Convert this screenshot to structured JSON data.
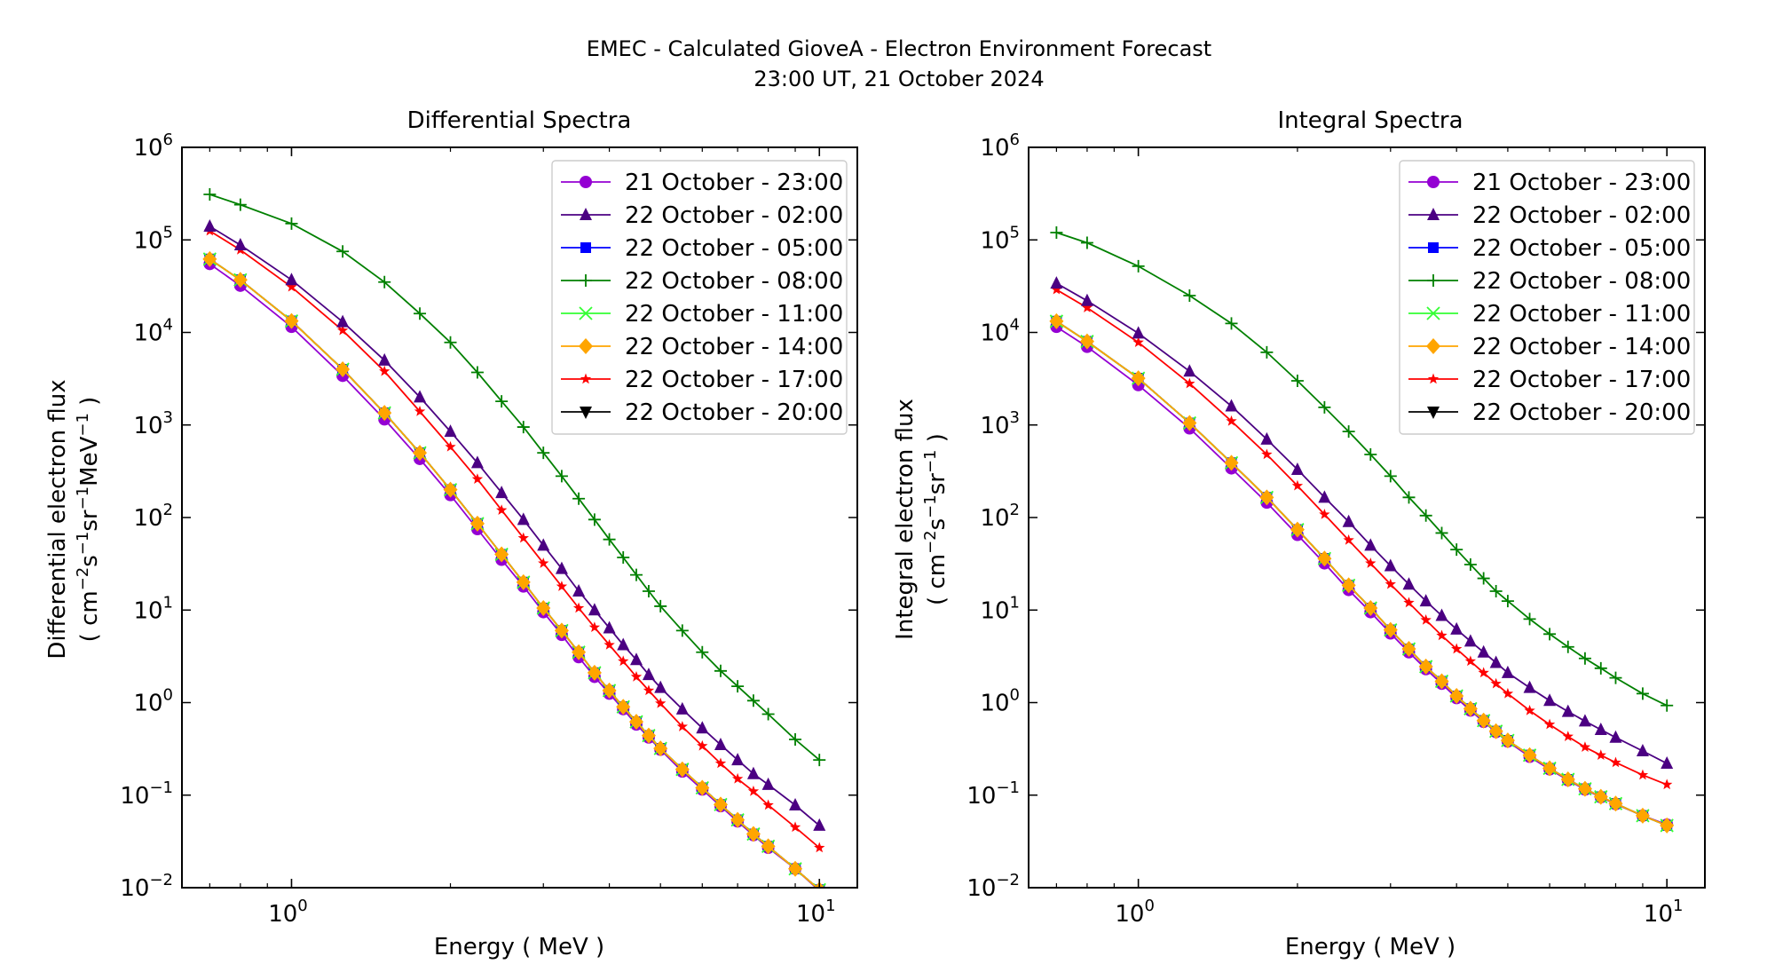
{
  "figure": {
    "title_line1": "EMEC - Calculated GioveA - Electron Environment Forecast",
    "title_line2": "23:00 UT, 21 October 2024"
  },
  "chart_data": [
    {
      "type": "line",
      "title": "Differential Spectra",
      "xlabel": "Energy ( MeV )",
      "ylabel_line1": "Differential electron flux",
      "ylabel_units": {
        "open": "( cm",
        "e1": "−2",
        "s": "s",
        "e2": "−1",
        "sr": "sr",
        "e3": "−1",
        "mev": "MeV",
        "e4": "−1",
        "close": " )"
      },
      "xscale": "log",
      "yscale": "log",
      "xlim": [
        0.62,
        11.8
      ],
      "ylim": [
        0.01,
        1000000
      ],
      "x_ticks": [
        {
          "base": "10",
          "exp": "0",
          "value": 1
        },
        {
          "base": "10",
          "exp": "1",
          "value": 10
        }
      ],
      "y_ticks": [
        {
          "base": "10",
          "exp": "−2",
          "value": 0.01
        },
        {
          "base": "10",
          "exp": "−1",
          "value": 0.1
        },
        {
          "base": "10",
          "exp": "0",
          "value": 1
        },
        {
          "base": "10",
          "exp": "1",
          "value": 10
        },
        {
          "base": "10",
          "exp": "2",
          "value": 100
        },
        {
          "base": "10",
          "exp": "3",
          "value": 1000
        },
        {
          "base": "10",
          "exp": "4",
          "value": 10000
        },
        {
          "base": "10",
          "exp": "5",
          "value": 100000
        },
        {
          "base": "10",
          "exp": "6",
          "value": 1000000
        }
      ],
      "grid": false,
      "legend_position": "top-right",
      "x": [
        0.7,
        0.8,
        1.0,
        1.25,
        1.5,
        1.75,
        2.0,
        2.25,
        2.5,
        2.75,
        3.0,
        3.25,
        3.5,
        3.75,
        4.0,
        4.25,
        4.5,
        4.75,
        5.0,
        5.5,
        6.0,
        6.5,
        7.0,
        7.5,
        8.0,
        9.0,
        10.0
      ],
      "series": [
        {
          "name": "21 October - 23:00",
          "color": "#9400d3",
          "marker": "circle",
          "values": [
            55000,
            32000,
            11500,
            3400,
            1150,
            430,
            175,
            75,
            35,
            18,
            9.5,
            5.4,
            3.1,
            1.9,
            1.25,
            0.85,
            0.58,
            0.42,
            0.31,
            0.18,
            0.115,
            0.076,
            0.052,
            0.037,
            0.027,
            0.016,
            0.0093
          ]
        },
        {
          "name": "22 October - 02:00",
          "color": "#4b0082",
          "marker": "triangle-up",
          "values": [
            140000,
            88000,
            37000,
            13000,
            5000,
            2000,
            850,
            390,
            185,
            95,
            50,
            28,
            16,
            10,
            6.4,
            4.2,
            2.9,
            2.0,
            1.45,
            0.85,
            0.53,
            0.35,
            0.24,
            0.17,
            0.13,
            0.078,
            0.047
          ]
        },
        {
          "name": "22 October - 05:00",
          "color": "#0000ff",
          "marker": "square",
          "values": [
            62000,
            37000,
            13300,
            4000,
            1350,
            500,
            200,
            86,
            40,
            20,
            10.5,
            6.0,
            3.5,
            2.1,
            1.35,
            0.9,
            0.62,
            0.44,
            0.32,
            0.19,
            0.12,
            0.079,
            0.054,
            0.038,
            0.028,
            0.016,
            0.0095
          ]
        },
        {
          "name": "22 October - 08:00",
          "color": "#008000",
          "marker": "plus",
          "values": [
            310000,
            240000,
            150000,
            75000,
            35000,
            16000,
            7800,
            3700,
            1800,
            950,
            500,
            280,
            160,
            95,
            58,
            37,
            24,
            16,
            11,
            6.0,
            3.5,
            2.2,
            1.5,
            1.05,
            0.75,
            0.4,
            0.24
          ]
        },
        {
          "name": "22 October - 11:00",
          "color": "#33ff33",
          "marker": "x",
          "values": [
            62000,
            37000,
            13300,
            4000,
            1350,
            500,
            200,
            86,
            40,
            20,
            10.5,
            6.0,
            3.5,
            2.1,
            1.35,
            0.9,
            0.62,
            0.44,
            0.32,
            0.19,
            0.12,
            0.079,
            0.054,
            0.038,
            0.028,
            0.016,
            0.0095
          ]
        },
        {
          "name": "22 October - 14:00",
          "color": "#ffa500",
          "marker": "diamond",
          "values": [
            62000,
            37000,
            13300,
            4000,
            1350,
            500,
            200,
            86,
            40,
            20,
            10.5,
            6.0,
            3.5,
            2.1,
            1.35,
            0.9,
            0.62,
            0.44,
            0.32,
            0.19,
            0.12,
            0.079,
            0.054,
            0.038,
            0.028,
            0.016,
            0.0095
          ]
        },
        {
          "name": "22 October - 17:00",
          "color": "#ff0000",
          "marker": "star",
          "values": [
            125000,
            78000,
            31000,
            10500,
            3800,
            1400,
            580,
            260,
            120,
            60,
            32,
            18,
            10.5,
            6.5,
            4.2,
            2.8,
            1.9,
            1.35,
            0.98,
            0.55,
            0.34,
            0.22,
            0.15,
            0.11,
            0.078,
            0.045,
            0.027
          ]
        },
        {
          "name": "22 October - 20:00",
          "color": "#000000",
          "marker": "triangle-down",
          "values": [
            62000,
            37000,
            13300,
            4000,
            1350,
            500,
            200,
            86,
            40,
            20,
            10.5,
            6.0,
            3.5,
            2.1,
            1.35,
            0.9,
            0.62,
            0.44,
            0.32,
            0.19,
            0.12,
            0.079,
            0.054,
            0.038,
            0.028,
            0.016,
            0.0095
          ]
        }
      ],
      "draw_order": [
        7,
        0,
        2,
        4,
        5,
        6,
        1,
        3
      ]
    },
    {
      "type": "line",
      "title": "Integral Spectra",
      "xlabel": "Energy ( MeV )",
      "ylabel_line1": "Integral electron flux",
      "ylabel_units": {
        "open": "( cm",
        "e1": "−2",
        "s": "s",
        "e2": "−1",
        "sr": "sr",
        "e3": "−1",
        "close": " )"
      },
      "xscale": "log",
      "yscale": "log",
      "xlim": [
        0.62,
        11.8
      ],
      "ylim": [
        0.01,
        1000000
      ],
      "x_ticks": [
        {
          "base": "10",
          "exp": "0",
          "value": 1
        },
        {
          "base": "10",
          "exp": "1",
          "value": 10
        }
      ],
      "y_ticks": [
        {
          "base": "10",
          "exp": "−2",
          "value": 0.01
        },
        {
          "base": "10",
          "exp": "−1",
          "value": 0.1
        },
        {
          "base": "10",
          "exp": "0",
          "value": 1
        },
        {
          "base": "10",
          "exp": "1",
          "value": 10
        },
        {
          "base": "10",
          "exp": "2",
          "value": 100
        },
        {
          "base": "10",
          "exp": "3",
          "value": 1000
        },
        {
          "base": "10",
          "exp": "4",
          "value": 10000
        },
        {
          "base": "10",
          "exp": "5",
          "value": 100000
        },
        {
          "base": "10",
          "exp": "6",
          "value": 1000000
        }
      ],
      "grid": false,
      "legend_position": "top-right",
      "x": [
        0.7,
        0.8,
        1.0,
        1.25,
        1.5,
        1.75,
        2.0,
        2.25,
        2.5,
        2.75,
        3.0,
        3.25,
        3.5,
        3.75,
        4.0,
        4.25,
        4.5,
        4.75,
        5.0,
        5.5,
        6.0,
        6.5,
        7.0,
        7.5,
        8.0,
        9.0,
        10.0
      ],
      "series": [
        {
          "name": "21 October - 23:00",
          "color": "#9400d3",
          "marker": "circle",
          "values": [
            11500,
            7000,
            2700,
            920,
            340,
            145,
            65,
            32,
            16.5,
            9.5,
            5.6,
            3.5,
            2.3,
            1.6,
            1.12,
            0.82,
            0.62,
            0.48,
            0.38,
            0.26,
            0.19,
            0.145,
            0.115,
            0.095,
            0.08,
            0.06,
            0.048
          ]
        },
        {
          "name": "22 October - 02:00",
          "color": "#4b0082",
          "marker": "triangle-up",
          "values": [
            34000,
            22000,
            9800,
            3800,
            1600,
            700,
            330,
            165,
            90,
            50,
            30,
            19,
            12.5,
            8.7,
            6.2,
            4.6,
            3.5,
            2.7,
            2.1,
            1.45,
            1.05,
            0.8,
            0.63,
            0.51,
            0.42,
            0.3,
            0.22
          ]
        },
        {
          "name": "22 October - 05:00",
          "color": "#0000ff",
          "marker": "square",
          "values": [
            13200,
            8000,
            3200,
            1050,
            390,
            165,
            74,
            36,
            18.5,
            10.5,
            6.1,
            3.8,
            2.45,
            1.7,
            1.18,
            0.86,
            0.64,
            0.49,
            0.39,
            0.27,
            0.195,
            0.148,
            0.117,
            0.096,
            0.081,
            0.06,
            0.047
          ]
        },
        {
          "name": "22 October - 08:00",
          "color": "#008000",
          "marker": "plus",
          "values": [
            120000,
            93000,
            52000,
            25000,
            12500,
            6100,
            3000,
            1550,
            850,
            480,
            280,
            165,
            105,
            68,
            45,
            31,
            22,
            16,
            12.5,
            8.0,
            5.5,
            4.0,
            3.0,
            2.35,
            1.85,
            1.25,
            0.93
          ]
        },
        {
          "name": "22 October - 11:00",
          "color": "#33ff33",
          "marker": "x",
          "values": [
            13200,
            8000,
            3200,
            1050,
            390,
            165,
            74,
            36,
            18.5,
            10.5,
            6.1,
            3.8,
            2.45,
            1.7,
            1.18,
            0.86,
            0.64,
            0.49,
            0.39,
            0.27,
            0.195,
            0.148,
            0.117,
            0.096,
            0.081,
            0.06,
            0.047
          ]
        },
        {
          "name": "22 October - 14:00",
          "color": "#ffa500",
          "marker": "diamond",
          "values": [
            13200,
            8000,
            3200,
            1050,
            390,
            165,
            74,
            36,
            18.5,
            10.5,
            6.1,
            3.8,
            2.45,
            1.7,
            1.18,
            0.86,
            0.64,
            0.49,
            0.39,
            0.27,
            0.195,
            0.148,
            0.117,
            0.096,
            0.081,
            0.06,
            0.047
          ]
        },
        {
          "name": "22 October - 17:00",
          "color": "#ff0000",
          "marker": "star",
          "values": [
            29000,
            18500,
            7800,
            2800,
            1100,
            480,
            220,
            108,
            57,
            32,
            19,
            12,
            7.8,
            5.3,
            3.8,
            2.8,
            2.1,
            1.6,
            1.25,
            0.82,
            0.58,
            0.43,
            0.33,
            0.27,
            0.225,
            0.165,
            0.13
          ]
        },
        {
          "name": "22 October - 20:00",
          "color": "#000000",
          "marker": "triangle-down",
          "values": [
            13200,
            8000,
            3200,
            1050,
            390,
            165,
            74,
            36,
            18.5,
            10.5,
            6.1,
            3.8,
            2.45,
            1.7,
            1.18,
            0.86,
            0.64,
            0.49,
            0.39,
            0.27,
            0.195,
            0.148,
            0.117,
            0.096,
            0.081,
            0.06,
            0.047
          ]
        }
      ],
      "draw_order": [
        7,
        0,
        2,
        4,
        5,
        6,
        1,
        3
      ]
    }
  ]
}
